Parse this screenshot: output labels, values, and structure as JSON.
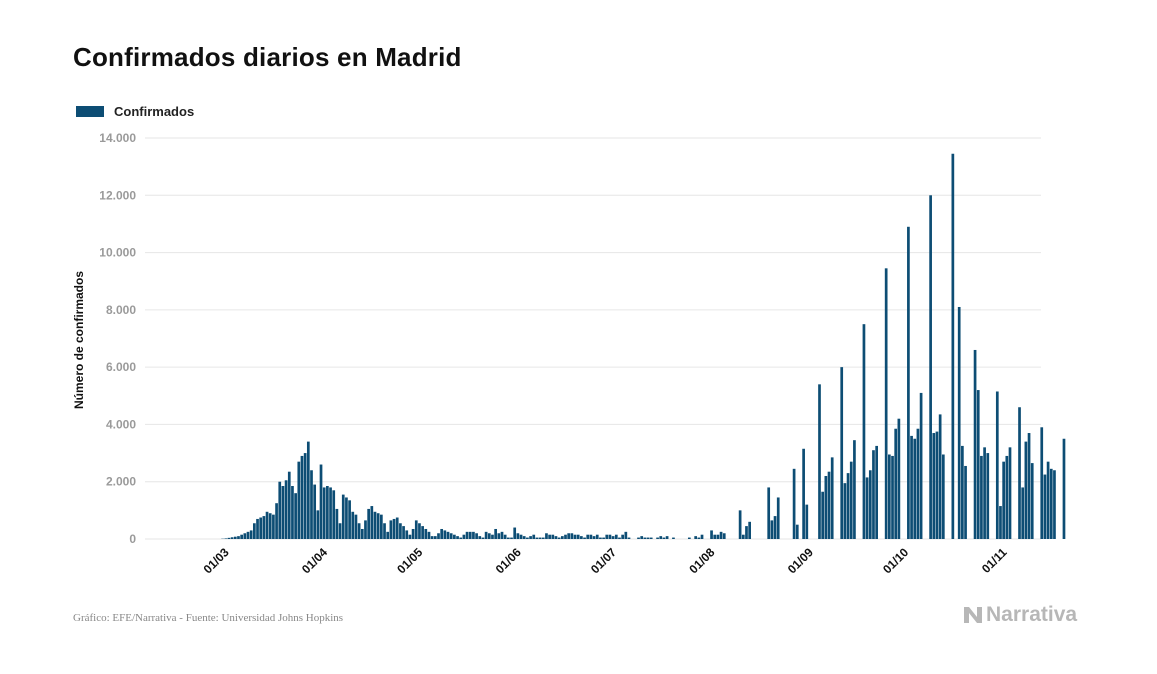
{
  "title": "Confirmados diarios en Madrid",
  "legend_label": "Confirmados",
  "footer": "Gráfico: EFE/Narrativa - Fuente: Universidad Johns Hopkins",
  "brand": "Narrativa",
  "colors": {
    "bar": "#0d4d74",
    "grid": "#e6e6e6",
    "tick": "#9a9a9a",
    "brand": "#b7b7b7"
  },
  "chart_data": {
    "type": "bar",
    "title": "Confirmados diarios en Madrid",
    "ylabel": "Número de confirmados",
    "xlabel": "",
    "ylim": [
      0,
      14000
    ],
    "yticks": [
      0,
      2000,
      4000,
      6000,
      8000,
      10000,
      12000,
      14000
    ],
    "ytick_labels": [
      "0",
      "2.000",
      "4.000",
      "6.000",
      "8.000",
      "10.000",
      "12.000",
      "14.000"
    ],
    "xtick_labels": [
      "01/03",
      "01/04",
      "01/05",
      "01/06",
      "01/07",
      "01/08",
      "01/09",
      "01/10",
      "01/11"
    ],
    "x_start": "2020-02-18",
    "legend": "top-left",
    "grid": "horizontal",
    "series": [
      {
        "name": "Confirmados",
        "values": [
          0,
          0,
          0,
          0,
          0,
          0,
          0,
          0,
          0,
          0,
          0,
          0,
          10,
          20,
          40,
          60,
          80,
          100,
          150,
          200,
          250,
          300,
          550,
          700,
          750,
          800,
          950,
          900,
          850,
          1250,
          2000,
          1850,
          2050,
          2350,
          1850,
          1600,
          2700,
          2900,
          3000,
          3400,
          2400,
          1900,
          1000,
          2600,
          1800,
          1850,
          1800,
          1700,
          1050,
          550,
          1550,
          1450,
          1350,
          950,
          850,
          550,
          350,
          650,
          1050,
          1150,
          950,
          900,
          850,
          550,
          250,
          650,
          700,
          750,
          550,
          450,
          300,
          150,
          350,
          650,
          550,
          450,
          350,
          250,
          100,
          100,
          200,
          350,
          300,
          250,
          200,
          150,
          100,
          50,
          150,
          250,
          250,
          250,
          200,
          100,
          50,
          250,
          200,
          150,
          350,
          200,
          250,
          150,
          50,
          50,
          400,
          200,
          150,
          100,
          50,
          100,
          150,
          50,
          50,
          50,
          200,
          150,
          150,
          100,
          50,
          100,
          150,
          200,
          200,
          150,
          150,
          100,
          50,
          150,
          150,
          100,
          150,
          50,
          50,
          150,
          150,
          100,
          150,
          50,
          150,
          250,
          50,
          0,
          0,
          50,
          100,
          50,
          50,
          50,
          0,
          50,
          100,
          50,
          100,
          0,
          50,
          0,
          0,
          0,
          0,
          50,
          0,
          100,
          50,
          150,
          0,
          0,
          300,
          150,
          150,
          250,
          200,
          0,
          0,
          0,
          0,
          1000,
          150,
          450,
          600,
          0,
          0,
          0,
          0,
          0,
          1800,
          650,
          800,
          1450,
          0,
          0,
          0,
          0,
          2450,
          500,
          0,
          3150,
          1200,
          0,
          0,
          0,
          5400,
          1650,
          2200,
          2350,
          2850,
          0,
          0,
          6000,
          1950,
          2300,
          2700,
          3450,
          0,
          0,
          7500,
          2150,
          2400,
          3100,
          3250,
          0,
          0,
          9450,
          2950,
          2900,
          3850,
          4200,
          0,
          0,
          10900,
          3600,
          3500,
          3850,
          5100,
          0,
          0,
          12000,
          3700,
          3750,
          4350,
          2950,
          0,
          0,
          13450,
          0,
          8100,
          3250,
          2550,
          0,
          0,
          6600,
          5200,
          2900,
          3200,
          3000,
          0,
          0,
          5150,
          1150,
          2700,
          2900,
          3200,
          0,
          0,
          4600,
          1800,
          3400,
          3700,
          2650,
          0,
          0,
          3900,
          2250,
          2700,
          2450,
          2400,
          0,
          0,
          3500
        ]
      }
    ]
  }
}
